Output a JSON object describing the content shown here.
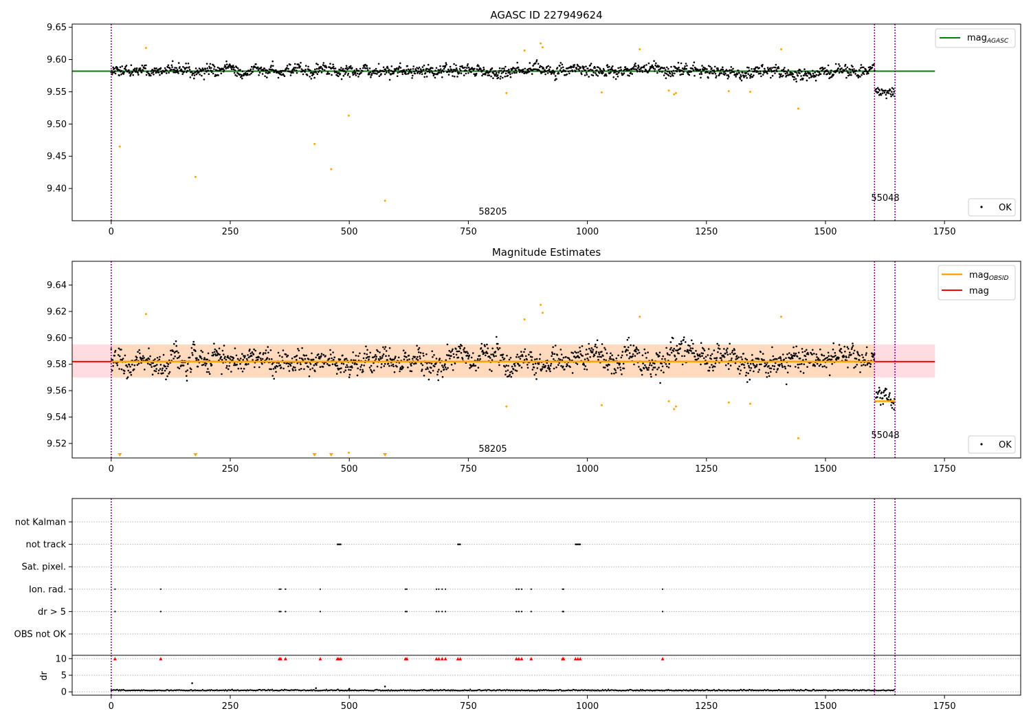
{
  "chart_data": [
    {
      "type": "scatter",
      "title": "AGASC ID 227949624",
      "xlabel": "",
      "ylabel": "",
      "xlim": [
        -82,
        1910
      ],
      "ylim": [
        9.35,
        9.655
      ],
      "xticks": [
        0,
        250,
        500,
        750,
        1000,
        1250,
        1500,
        1750
      ],
      "yticks": [
        9.4,
        9.45,
        9.5,
        9.55,
        9.6,
        9.65
      ],
      "grid": false,
      "legend_upper": {
        "placement": "top-right",
        "entries": [
          {
            "label_main": "mag",
            "label_sub": "AGASC",
            "color": "#008000"
          }
        ]
      },
      "legend_lower": {
        "placement": "bottom-right",
        "entries": [
          {
            "label": "OK",
            "color": "#000000"
          }
        ]
      },
      "reference_line": {
        "name": "mag_AGASC",
        "y": 9.582,
        "x_range": [
          -82,
          1730
        ],
        "color": "#008000"
      },
      "obsid_boundaries": [
        0,
        1603,
        1646
      ],
      "obsid_labels": [
        {
          "x": 800,
          "text": "58205"
        },
        {
          "x": 1624,
          "text": "55048"
        }
      ],
      "series": [
        {
          "name": "OK",
          "color": "#000000",
          "segments": [
            {
              "x_range": [
                0,
                1603
              ],
              "median": 9.583,
              "spread": 0.009
            },
            {
              "x_range": [
                1605,
                1645
              ],
              "median": 9.551,
              "spread": 0.007
            }
          ]
        },
        {
          "name": "not OK",
          "color": "#ffa500",
          "points": [
            [
              18,
              9.465
            ],
            [
              73,
              9.618
            ],
            [
              177,
              9.418
            ],
            [
              427,
              9.469
            ],
            [
              462,
              9.43
            ],
            [
              499,
              9.513
            ],
            [
              575,
              9.381
            ],
            [
              830,
              9.548
            ],
            [
              868,
              9.614
            ],
            [
              902,
              9.625
            ],
            [
              906,
              9.619
            ],
            [
              1030,
              9.549
            ],
            [
              1110,
              9.616
            ],
            [
              1171,
              9.552
            ],
            [
              1182,
              9.546
            ],
            [
              1186,
              9.548
            ],
            [
              1297,
              9.551
            ],
            [
              1342,
              9.55
            ],
            [
              1407,
              9.616
            ],
            [
              1443,
              9.524
            ]
          ]
        }
      ]
    },
    {
      "type": "scatter",
      "title": "Magnitude Estimates",
      "xlabel": "",
      "ylabel": "",
      "xlim": [
        -82,
        1910
      ],
      "ylim": [
        9.509,
        9.658
      ],
      "xticks": [
        0,
        250,
        500,
        750,
        1000,
        1250,
        1500,
        1750
      ],
      "yticks": [
        9.52,
        9.54,
        9.56,
        9.58,
        9.6,
        9.62,
        9.64
      ],
      "grid": false,
      "legend_upper": {
        "placement": "top-right",
        "entries": [
          {
            "label_main": "mag",
            "label_sub": "OBSID",
            "color": "#ffa500"
          },
          {
            "label_main": "mag",
            "label_sub": "",
            "color": "#ff0000"
          }
        ]
      },
      "legend_lower": {
        "placement": "bottom-right",
        "entries": [
          {
            "label": "OK",
            "color": "#000000"
          }
        ]
      },
      "mag_line": {
        "y": 9.582,
        "x_range": [
          -82,
          1730
        ],
        "color": "#ff0000"
      },
      "mag_band": {
        "y_range": [
          9.57,
          9.595
        ],
        "x_range": [
          -82,
          1730
        ],
        "color": "#ffc0cb"
      },
      "obsid_mags": [
        {
          "x_range": [
            0,
            1603
          ],
          "mag": 9.582,
          "band": [
            9.57,
            9.595
          ]
        },
        {
          "x_range": [
            1603,
            1646
          ],
          "mag": 9.552
        }
      ],
      "obsid_boundaries": [
        0,
        1603,
        1646
      ],
      "obsid_labels": [
        {
          "x": 800,
          "text": "58205"
        },
        {
          "x": 1624,
          "text": "55048"
        }
      ],
      "out_of_range_markers": [
        18,
        177,
        427,
        462,
        575
      ],
      "series": [
        {
          "name": "OK",
          "color": "#000000",
          "segments": [
            {
              "x_range": [
                0,
                1603
              ],
              "median": 9.583,
              "spread": 0.009
            },
            {
              "x_range": [
                1605,
                1645
              ],
              "median": 9.551,
              "spread": 0.007
            }
          ]
        },
        {
          "name": "not OK",
          "color": "#ffa500",
          "points": [
            [
              73,
              9.618
            ],
            [
              499,
              9.513
            ],
            [
              830,
              9.548
            ],
            [
              868,
              9.614
            ],
            [
              902,
              9.625
            ],
            [
              906,
              9.619
            ],
            [
              1030,
              9.549
            ],
            [
              1110,
              9.616
            ],
            [
              1171,
              9.552
            ],
            [
              1182,
              9.546
            ],
            [
              1186,
              9.548
            ],
            [
              1297,
              9.551
            ],
            [
              1342,
              9.55
            ],
            [
              1407,
              9.616
            ],
            [
              1443,
              9.524
            ]
          ]
        }
      ]
    },
    {
      "type": "scatter",
      "title": "",
      "xlabel": "",
      "xlim": [
        -82,
        1910
      ],
      "xticks": [
        0,
        250,
        500,
        750,
        1000,
        1250,
        1500,
        1750
      ],
      "flag_rows": [
        "not Kalman",
        "not track",
        "Sat. pixel.",
        "Ion. rad.",
        "dr > 5",
        "OBS not OK"
      ],
      "flags": {
        "not track": [
          [
            475,
            482
          ],
          [
            728,
            733
          ],
          [
            975,
            985
          ]
        ],
        "Ion. rad.": [
          8,
          104,
          353,
          356,
          366,
          439,
          618,
          621,
          683,
          688,
          695,
          702,
          851,
          856,
          862,
          882,
          948,
          950,
          1158
        ],
        "dr > 5": [
          8,
          104,
          353,
          356,
          366,
          439,
          618,
          621,
          683,
          688,
          695,
          702,
          851,
          856,
          862,
          882,
          948,
          950,
          1158
        ]
      },
      "grid": true,
      "obsid_boundaries": [
        0,
        1603,
        1646
      ],
      "dr_panel": {
        "ylabel": "dr",
        "yticks": [
          0,
          5,
          10
        ],
        "ylim": [
          -1,
          11
        ],
        "clip_markers_at": 10,
        "clipped_x": [
          8,
          104,
          353,
          356,
          366,
          439,
          475,
          478,
          482,
          618,
          621,
          683,
          688,
          695,
          702,
          728,
          733,
          851,
          856,
          862,
          882,
          948,
          950,
          975,
          980,
          985,
          1158
        ],
        "baseline": 0.35,
        "spikes": [
          [
            170,
            2.6
          ],
          [
            430,
            1.1
          ],
          [
            500,
            0.9
          ],
          [
            575,
            1.6
          ]
        ]
      }
    }
  ]
}
